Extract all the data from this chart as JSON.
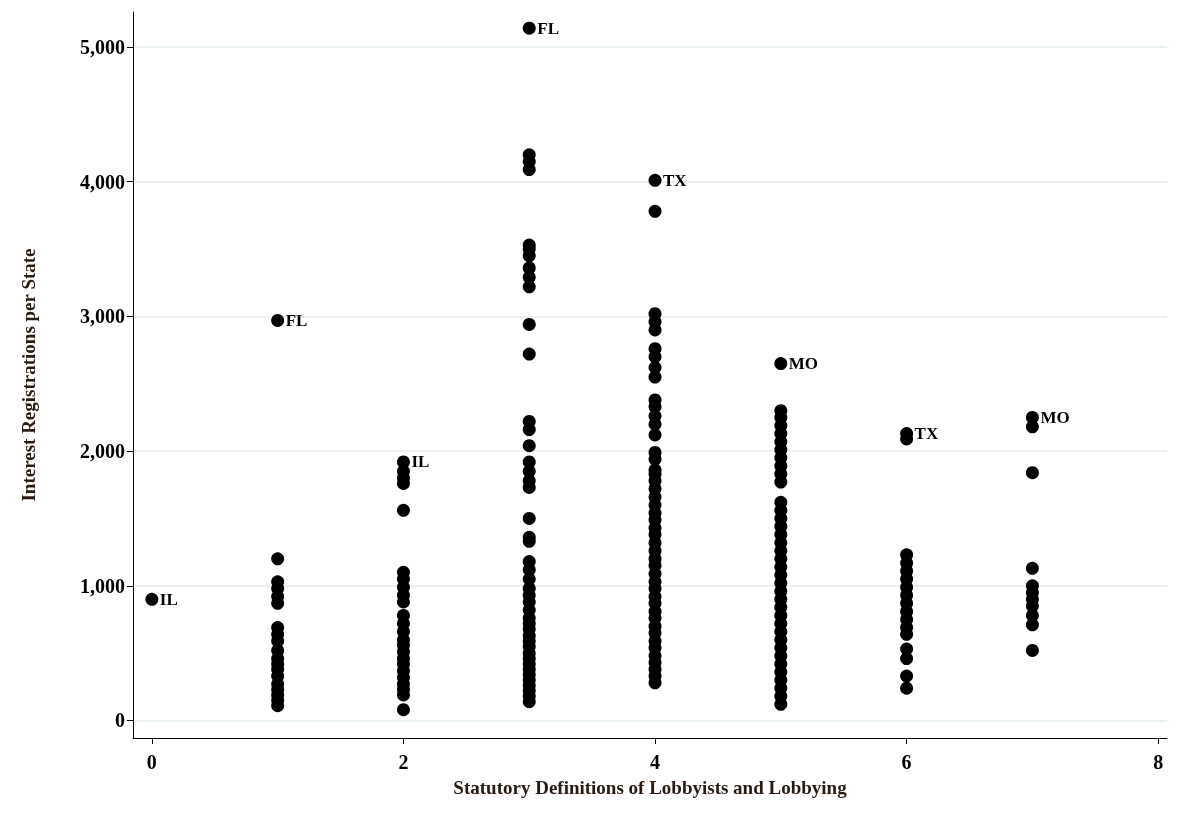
{
  "chart_data": {
    "type": "scatter",
    "xlabel": "Statutory Definitions of Lobbyists and Lobbying",
    "ylabel": "Interest Registrations per State",
    "xlim": [
      -0.15,
      8.07
    ],
    "xticks": [
      0,
      2,
      4,
      6,
      8
    ],
    "ylim": [
      -130,
      5260
    ],
    "yticks": [
      {
        "value": 0,
        "label": "0"
      },
      {
        "value": 1000,
        "label": "1,000"
      },
      {
        "value": 2000,
        "label": "2,000"
      },
      {
        "value": 3000,
        "label": "3,000"
      },
      {
        "value": 4000,
        "label": "4,000"
      },
      {
        "value": 5000,
        "label": "5,000"
      }
    ],
    "grid": "y",
    "marker": "circle",
    "series": [
      {
        "color": "#000000",
        "x": [
          0,
          1,
          1,
          1,
          1,
          1,
          1,
          1,
          1,
          1,
          1,
          1,
          1,
          1,
          1,
          1,
          1,
          1,
          1,
          1,
          2,
          2,
          2,
          2,
          2,
          2,
          2,
          2,
          2,
          2,
          2,
          2,
          2,
          2,
          2,
          2,
          2,
          2,
          2,
          2,
          2,
          2,
          2,
          2,
          3,
          3,
          3,
          3,
          3,
          3,
          3,
          3,
          3,
          3,
          3,
          3,
          3,
          3,
          3,
          3,
          3,
          3,
          3,
          3,
          3,
          3,
          3,
          3,
          3,
          3,
          3,
          3,
          3,
          3,
          3,
          3,
          3,
          3,
          3,
          3,
          3,
          3,
          3,
          3,
          3,
          3,
          3,
          3,
          3,
          4,
          4,
          4,
          4,
          4,
          4,
          4,
          4,
          4,
          4,
          4,
          4,
          4,
          4,
          4,
          4,
          4,
          4,
          4,
          4,
          4,
          4,
          4,
          4,
          4,
          4,
          4,
          4,
          4,
          4,
          4,
          4,
          4,
          4,
          4,
          4,
          4,
          4,
          4,
          4,
          4,
          4,
          4,
          4,
          4,
          4,
          5,
          5,
          5,
          5,
          5,
          5,
          5,
          5,
          5,
          5,
          5,
          5,
          5,
          5,
          5,
          5,
          5,
          5,
          5,
          5,
          5,
          5,
          5,
          5,
          5,
          5,
          5,
          5,
          5,
          5,
          5,
          5,
          5,
          5,
          5,
          5,
          5,
          6,
          6,
          6,
          6,
          6,
          6,
          6,
          6,
          6,
          6,
          6,
          6,
          6,
          6,
          6,
          6,
          6,
          7,
          7,
          7,
          7,
          7,
          7,
          7,
          7,
          7,
          7,
          7
        ],
        "values": [
          900,
          2970,
          1200,
          1030,
          980,
          920,
          870,
          690,
          640,
          590,
          520,
          460,
          420,
          380,
          330,
          270,
          230,
          190,
          150,
          110,
          1920,
          1850,
          1800,
          1760,
          1560,
          1100,
          1050,
          990,
          930,
          880,
          780,
          720,
          660,
          600,
          560,
          510,
          460,
          420,
          370,
          320,
          270,
          230,
          190,
          80,
          5140,
          4200,
          4150,
          4090,
          3530,
          3500,
          3450,
          3360,
          3290,
          3220,
          2940,
          2720,
          2220,
          2160,
          2040,
          1920,
          1850,
          1780,
          1730,
          1500,
          1360,
          1330,
          1180,
          1120,
          1050,
          980,
          930,
          880,
          820,
          760,
          720,
          680,
          630,
          590,
          550,
          500,
          460,
          420,
          380,
          340,
          300,
          260,
          220,
          180,
          140,
          4010,
          3780,
          3020,
          2960,
          2900,
          2760,
          2700,
          2620,
          2550,
          2380,
          2330,
          2260,
          2200,
          2120,
          1990,
          1940,
          1860,
          1830,
          1780,
          1720,
          1660,
          1600,
          1540,
          1490,
          1430,
          1380,
          1320,
          1260,
          1200,
          1150,
          1090,
          1030,
          980,
          920,
          870,
          810,
          760,
          700,
          650,
          590,
          540,
          480,
          430,
          380,
          330,
          280,
          2650,
          2300,
          2250,
          2190,
          2130,
          2070,
          2010,
          1950,
          1890,
          1830,
          1770,
          1620,
          1560,
          1500,
          1440,
          1380,
          1320,
          1260,
          1200,
          1140,
          1080,
          1020,
          960,
          900,
          840,
          780,
          720,
          660,
          600,
          540,
          480,
          420,
          360,
          300,
          240,
          180,
          120,
          2130,
          2090,
          1230,
          1170,
          1110,
          1050,
          990,
          930,
          870,
          810,
          750,
          690,
          640,
          530,
          460,
          330,
          240,
          2250,
          2180,
          1840,
          1130,
          1000,
          950,
          900,
          850,
          780,
          710,
          520
        ]
      }
    ],
    "annotations": [
      {
        "text": "IL",
        "x": 0,
        "y": 900
      },
      {
        "text": "FL",
        "x": 1,
        "y": 2970
      },
      {
        "text": "IL",
        "x": 2,
        "y": 1920
      },
      {
        "text": "FL",
        "x": 3,
        "y": 5140
      },
      {
        "text": "TX",
        "x": 4,
        "y": 4010
      },
      {
        "text": "MO",
        "x": 5,
        "y": 2650
      },
      {
        "text": "TX",
        "x": 6,
        "y": 2130
      },
      {
        "text": "MO",
        "x": 7,
        "y": 2250
      }
    ]
  }
}
